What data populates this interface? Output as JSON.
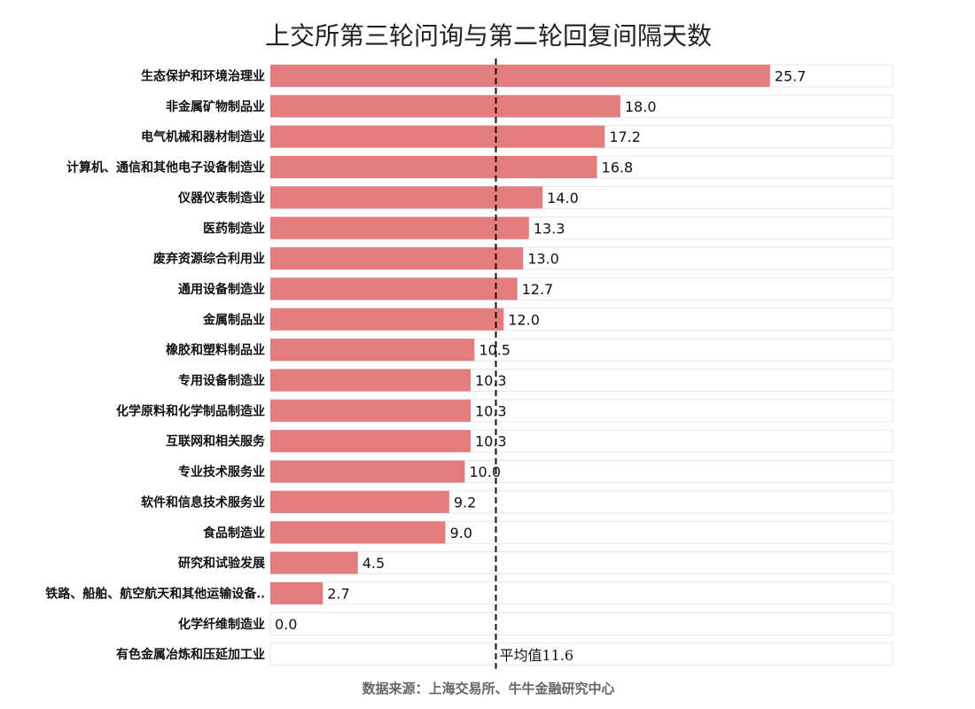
{
  "chart_data": {
    "type": "bar",
    "orientation": "horizontal",
    "title": "上交所第三轮问询与第二轮回复间隔天数",
    "categories": [
      "生态保护和环境治理业",
      "非金属矿物制品业",
      "电气机械和器材制造业",
      "计算机、通信和其他电子设备制造业",
      "仪器仪表制造业",
      "医药制造业",
      "废弃资源综合利用业",
      "通用设备制造业",
      "金属制品业",
      "橡胶和塑料制品业",
      "专用设备制造业",
      "化学原料和化学制品制造业",
      "互联网和相关服务",
      "专业技术服务业",
      "软件和信息技术服务业",
      "食品制造业",
      "研究和试验发展",
      "铁路、船舶、航空航天和其他运输设备..",
      "化学纤维制造业",
      "有色金属冶炼和压延加工业"
    ],
    "values": [
      25.7,
      18.0,
      17.2,
      16.8,
      14.0,
      13.3,
      13.0,
      12.7,
      12.0,
      10.5,
      10.3,
      10.3,
      10.3,
      10.0,
      9.2,
      9.0,
      4.5,
      2.7,
      0.0,
      null
    ],
    "value_labels": [
      "25.7",
      "18.0",
      "17.2",
      "16.8",
      "14.0",
      "13.3",
      "13.0",
      "12.7",
      "12.0",
      "10.5",
      "10.3",
      "10.3",
      "10.3",
      "10.0",
      "9.2",
      "9.0",
      "4.5",
      "2.7",
      "0.0",
      ""
    ],
    "xlim": [
      0,
      32
    ],
    "average": {
      "value": 11.6,
      "label": "平均值11.6"
    },
    "bar_color": "#e57c7e",
    "track_color": "#e6e6e6",
    "avg_line_color": "#111111",
    "grid": false,
    "legend": "none"
  },
  "footer": {
    "source": "数据来源：上海交易所、牛牛金融研究中心"
  }
}
